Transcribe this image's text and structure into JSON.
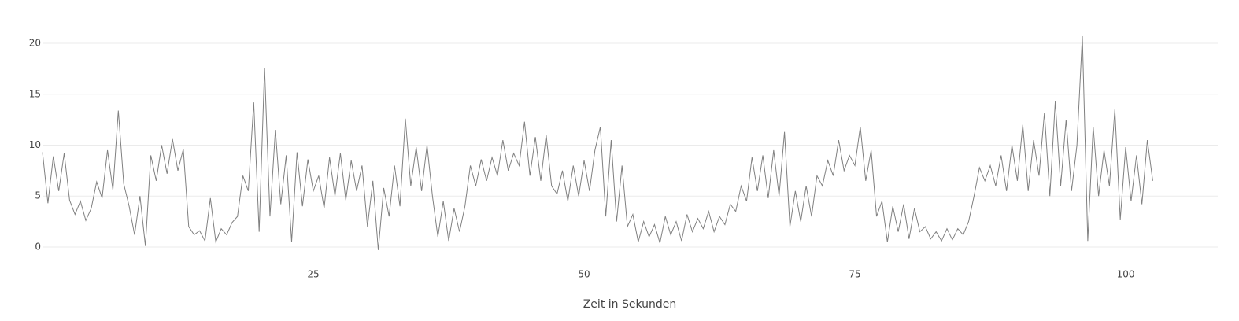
{
  "chart_data": {
    "type": "line",
    "x_label": "Zeit in Sekunden",
    "x": [
      0,
      0.5,
      1,
      1.5,
      2,
      2.5,
      3,
      3.5,
      4,
      4.5,
      5,
      5.5,
      6,
      6.5,
      7,
      7.5,
      8,
      8.5,
      9,
      9.5,
      10,
      10.5,
      11,
      11.5,
      12,
      12.5,
      13,
      13.5,
      14,
      14.5,
      15,
      15.5,
      16,
      16.5,
      17,
      17.5,
      18,
      18.5,
      19,
      19.5,
      20,
      20.5,
      21,
      21.5,
      22,
      22.5,
      23,
      23.5,
      24,
      24.5,
      25,
      25.5,
      26,
      26.5,
      27,
      27.5,
      28,
      28.5,
      29,
      29.5,
      30,
      30.5,
      31,
      31.5,
      32,
      32.5,
      33,
      33.5,
      34,
      34.5,
      35,
      35.5,
      36,
      36.5,
      37,
      37.5,
      38,
      38.5,
      39,
      39.5,
      40,
      40.5,
      41,
      41.5,
      42,
      42.5,
      43,
      43.5,
      44,
      44.5,
      45,
      45.5,
      46,
      46.5,
      47,
      47.5,
      48,
      48.5,
      49,
      49.5,
      50,
      50.5,
      51,
      51.5,
      52,
      52.5,
      53,
      53.5,
      54,
      54.5,
      55,
      55.5,
      56,
      56.5,
      57,
      57.5,
      58,
      58.5,
      59,
      59.5,
      60,
      60.5,
      61,
      61.5,
      62,
      62.5,
      63,
      63.5,
      64,
      64.5,
      65,
      65.5,
      66,
      66.5,
      67,
      67.5,
      68,
      68.5,
      69,
      69.5,
      70,
      70.5,
      71,
      71.5,
      72,
      72.5,
      73,
      73.5,
      74,
      74.5,
      75,
      75.5,
      76,
      76.5,
      77,
      77.5,
      78,
      78.5,
      79,
      79.5,
      80,
      80.5,
      81,
      81.5,
      82,
      82.5,
      83,
      83.5,
      84,
      84.5,
      85,
      85.5,
      86,
      86.5,
      87,
      87.5,
      88,
      88.5,
      89,
      89.5,
      90,
      90.5,
      91,
      91.5,
      92,
      92.5,
      93,
      93.5,
      94,
      94.5,
      95,
      95.5,
      96,
      96.5,
      97,
      97.5,
      98,
      98.5,
      99,
      99.5,
      100,
      100.5,
      101,
      101.5,
      102,
      102.5
    ],
    "values": [
      9.3,
      4.3,
      8.9,
      5.5,
      9.2,
      4.6,
      3.2,
      4.5,
      2.6,
      3.8,
      6.4,
      4.8,
      9.5,
      5.6,
      13.4,
      6.2,
      4.0,
      1.2,
      5.0,
      0.1,
      9.0,
      6.5,
      10.0,
      7.2,
      10.6,
      7.5,
      9.6,
      2.0,
      1.2,
      1.6,
      0.6,
      4.8,
      0.5,
      1.8,
      1.2,
      2.4,
      3.0,
      7.0,
      5.5,
      14.2,
      1.5,
      17.6,
      3.0,
      11.5,
      4.2,
      9.0,
      0.5,
      9.3,
      4.0,
      8.6,
      5.5,
      7.0,
      3.8,
      8.8,
      5.0,
      9.2,
      4.6,
      8.5,
      5.5,
      8.0,
      2.0,
      6.5,
      -0.3,
      5.8,
      3.0,
      8.0,
      4.0,
      12.6,
      6.0,
      9.8,
      5.5,
      10.0,
      5.0,
      1.0,
      4.5,
      0.6,
      3.8,
      1.5,
      4.0,
      8.0,
      6.0,
      8.6,
      6.5,
      8.8,
      7.0,
      10.5,
      7.5,
      9.2,
      8.0,
      12.3,
      7.0,
      10.8,
      6.5,
      11.0,
      6.0,
      5.2,
      7.5,
      4.5,
      8.0,
      5.0,
      8.5,
      5.5,
      9.5,
      11.8,
      3.0,
      10.5,
      2.5,
      8.0,
      2.0,
      3.2,
      0.5,
      2.5,
      1.0,
      2.2,
      0.4,
      3.0,
      1.2,
      2.5,
      0.6,
      3.2,
      1.5,
      2.8,
      1.8,
      3.5,
      1.5,
      3.0,
      2.2,
      4.2,
      3.5,
      6.0,
      4.5,
      8.8,
      5.5,
      9.0,
      4.8,
      9.5,
      5.0,
      11.3,
      2.0,
      5.5,
      2.5,
      6.0,
      3.0,
      7.0,
      6.0,
      8.5,
      7.0,
      10.5,
      7.5,
      9.0,
      8.0,
      11.8,
      6.5,
      9.5,
      3.0,
      4.5,
      0.5,
      4.0,
      1.5,
      4.2,
      0.8,
      3.8,
      1.5,
      2.0,
      0.8,
      1.5,
      0.6,
      1.8,
      0.7,
      1.8,
      1.2,
      2.5,
      5.0,
      7.8,
      6.5,
      8.0,
      6.0,
      9.0,
      5.5,
      10.0,
      6.5,
      12.0,
      5.5,
      10.5,
      7.0,
      13.2,
      5.0,
      14.3,
      6.0,
      12.5,
      5.5,
      10.0,
      20.7,
      0.6,
      11.8,
      5.0,
      9.5,
      6.0,
      13.5,
      2.7,
      9.8,
      4.5,
      9.0,
      4.2,
      10.5,
      6.5
    ],
    "color": "#808080",
    "xlim": [
      0,
      108.5
    ],
    "xticks": [
      25,
      50,
      75,
      100
    ],
    "ylim": [
      -1.5,
      21.5
    ],
    "yticks": [
      0,
      5,
      10,
      15,
      20
    ],
    "grid": true
  }
}
